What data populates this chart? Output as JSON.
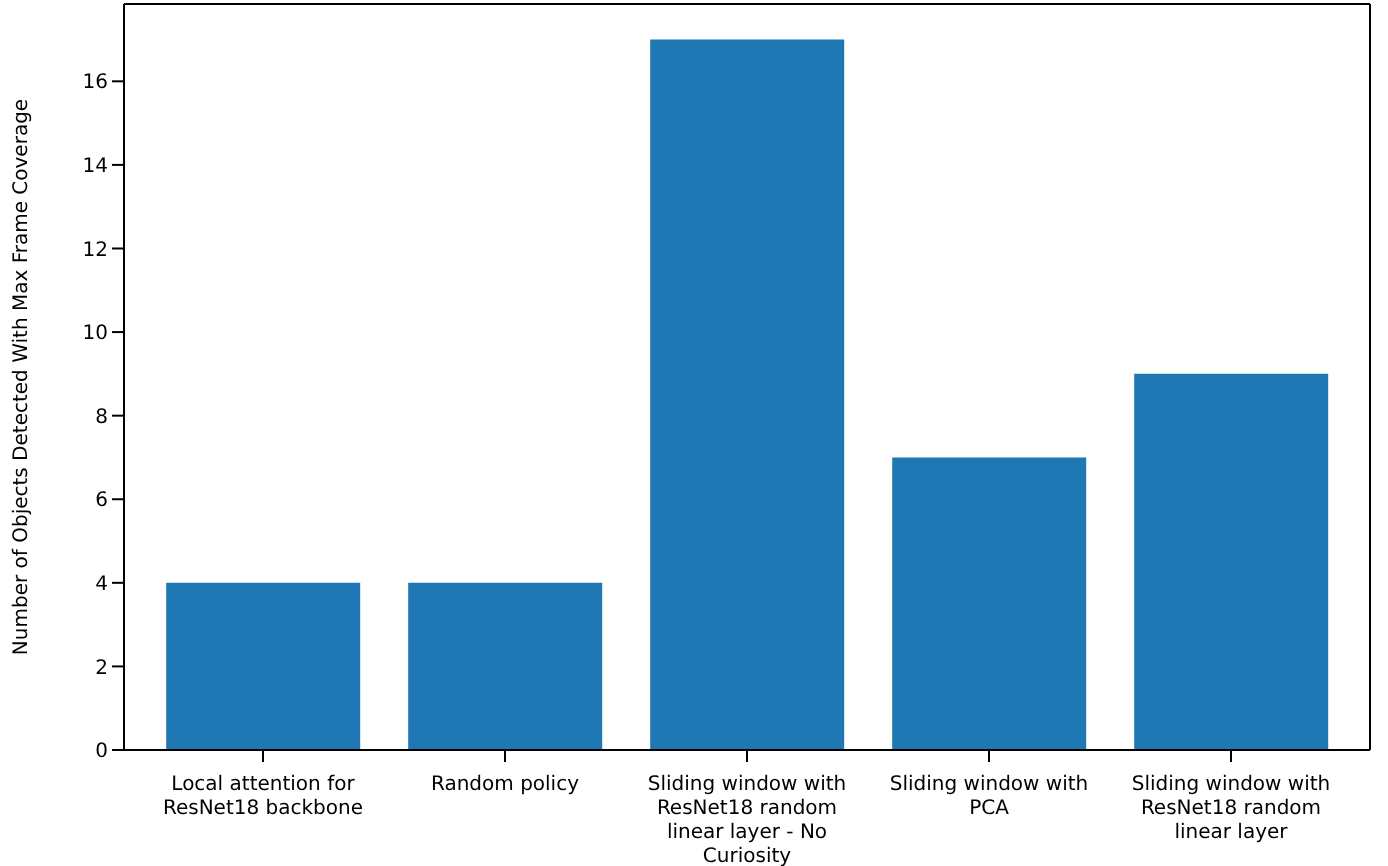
{
  "chart_data": {
    "type": "bar",
    "ylabel": "Number of Objects Detected With Max Frame Coverage",
    "categories": [
      "Local attention for ResNet18 backbone",
      "Random policy",
      "Sliding window with ResNet18 random linear layer - No Curiosity",
      "Sliding window with PCA",
      "Sliding window with ResNet18 random linear layer"
    ],
    "values": [
      4,
      4,
      17,
      7,
      9
    ],
    "color": "#1f77b4",
    "ylim": [
      0,
      17.85
    ],
    "yticks": [
      0,
      2,
      4,
      6,
      8,
      10,
      12,
      14,
      16
    ]
  }
}
